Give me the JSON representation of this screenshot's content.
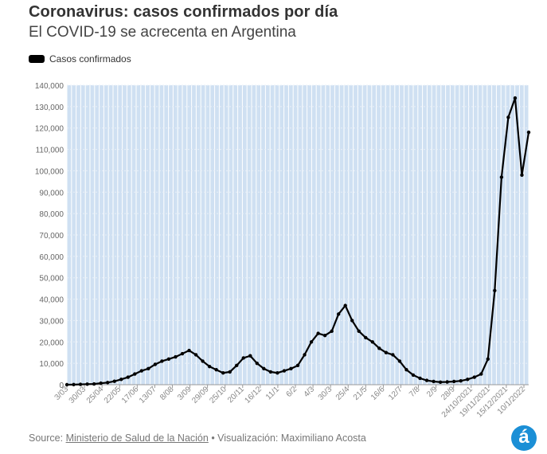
{
  "header": {
    "title": "Coronavirus: casos confirmados por día",
    "subtitle": "El COVID-19 se acrecenta en Argentina"
  },
  "legend": {
    "label": "Casos confirmados",
    "color": "#000000"
  },
  "footer": {
    "source_prefix": "Source: ",
    "source_link": "Ministerio de Salud de la Nación",
    "visualization": " • Visualización: Maximiliano Acosta"
  },
  "logo": {
    "glyph": "á",
    "color": "#1b8fd6"
  },
  "colors": {
    "plot_background": "#cfe0f2",
    "gridline": "#ffffff",
    "line": "#000000"
  },
  "chart_data": {
    "type": "line",
    "title": "Coronavirus: casos confirmados por día",
    "subtitle": "El COVID-19 se acrecenta en Argentina",
    "xlabel": "",
    "ylabel": "",
    "ylim": [
      0,
      140000
    ],
    "yticks": [
      0,
      10000,
      20000,
      30000,
      40000,
      50000,
      60000,
      70000,
      80000,
      90000,
      100000,
      110000,
      120000,
      130000,
      140000
    ],
    "ytick_labels": [
      "0",
      "10,000",
      "20,000",
      "30,000",
      "40,000",
      "50,000",
      "60,000",
      "70,000",
      "80,000",
      "90,000",
      "100,000",
      "110,000",
      "120,000",
      "130,000",
      "140,000"
    ],
    "xtick_labels": [
      "3/03",
      "30/03",
      "25/04",
      "22/05",
      "17/06",
      "13/07",
      "8/08",
      "3/09",
      "29/09",
      "25/10",
      "20/11",
      "16/12",
      "11/1",
      "6/2",
      "4/3",
      "30/3",
      "25/4",
      "21/5",
      "16/6",
      "12/7",
      "7/8",
      "2/9",
      "28/9",
      "24/10/2021",
      "19/11/2021",
      "15/12/2021",
      "10/1/2022"
    ],
    "grid": true,
    "legend_position": "top-left",
    "series": [
      {
        "name": "Casos confirmados",
        "x": [
          0,
          10,
          20,
          30,
          40,
          50,
          60,
          70,
          80,
          90,
          100,
          110,
          120,
          130,
          140,
          150,
          160,
          170,
          180,
          190,
          200,
          210,
          220,
          230,
          240,
          250,
          260,
          270,
          280,
          290,
          300,
          310,
          320,
          330,
          340,
          350,
          360,
          370,
          380,
          390,
          400,
          410,
          420,
          430,
          440,
          450,
          460,
          470,
          480,
          490,
          500,
          510,
          520,
          530,
          540,
          550,
          560,
          570,
          580,
          590,
          600,
          610,
          620,
          630,
          640,
          650,
          660,
          670,
          680
        ],
        "values": [
          0,
          50,
          150,
          250,
          350,
          700,
          1000,
          1600,
          2500,
          3500,
          5000,
          6500,
          7500,
          9500,
          11000,
          12000,
          13000,
          14500,
          16000,
          14000,
          11000,
          8500,
          7000,
          5500,
          6000,
          9000,
          12500,
          13500,
          10000,
          7500,
          6000,
          5500,
          6500,
          7500,
          9000,
          14000,
          20000,
          24000,
          23000,
          25000,
          33000,
          37000,
          30000,
          25000,
          22000,
          20000,
          17000,
          15000,
          14000,
          11000,
          7000,
          4500,
          3000,
          2000,
          1500,
          1200,
          1300,
          1500,
          1800,
          2500,
          3500,
          5000,
          12000,
          44000,
          97000,
          125000,
          134000,
          98000,
          118000
        ]
      }
    ]
  }
}
